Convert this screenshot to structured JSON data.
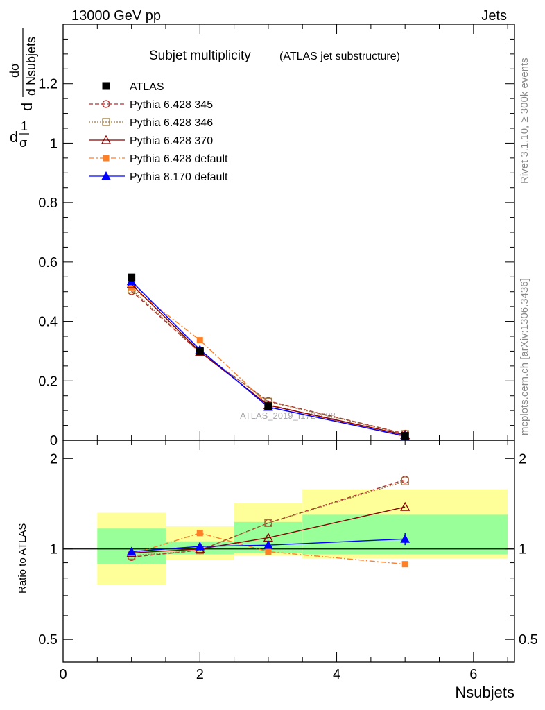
{
  "header": {
    "energy_label": "13000 GeV pp",
    "category_label": "Jets"
  },
  "side_labels": {
    "rivet": "Rivet 3.1.10, ≥ 300k events",
    "mcplots": "mcplots.cern.ch [arXiv:1306.3436]"
  },
  "watermark": "ATLAS_2019_I1724098",
  "colors": {
    "atlas": "#000000",
    "p345": "#b03030",
    "p346": "#a07838",
    "p370": "#8b0000",
    "p6def": "#ff7f27",
    "p8def": "#0000ff",
    "band_outer": "#ffff99",
    "band_inner": "#99ff99"
  },
  "chart_data": [
    {
      "type": "line",
      "title_main": "Subjet multiplicity",
      "title_sub": "(ATLAS jet substructure)",
      "ylabel": {
        "frac": "1",
        "frac_den": "σ",
        "d": "d",
        "dsig": "dσ",
        "dvar": "d Nsubjets"
      },
      "xlim": [
        0,
        6.6
      ],
      "ylim": [
        0,
        1.4
      ],
      "yticks": [
        0,
        0.2,
        0.4,
        0.6,
        0.8,
        1,
        1.2
      ],
      "ytick_labels": [
        "0",
        "0.2",
        "0.4",
        "0.6",
        "0.8",
        "1",
        "1.2"
      ],
      "series": [
        {
          "name": "ATLAS",
          "key": "atlas",
          "x": [
            1,
            2,
            3,
            5
          ],
          "y": [
            0.548,
            0.3,
            0.115,
            0.015
          ]
        },
        {
          "name": "Pythia 6.428 345",
          "key": "p345",
          "x": [
            1,
            2,
            3,
            5
          ],
          "y": [
            0.502,
            0.296,
            0.132,
            0.022
          ]
        },
        {
          "name": "Pythia 6.428 346",
          "key": "p346",
          "x": [
            1,
            2,
            3,
            5
          ],
          "y": [
            0.508,
            0.297,
            0.13,
            0.021
          ]
        },
        {
          "name": "Pythia 6.428 370",
          "key": "p370",
          "x": [
            1,
            2,
            3,
            5
          ],
          "y": [
            0.525,
            0.298,
            0.118,
            0.018
          ]
        },
        {
          "name": "Pythia 6.428 default",
          "key": "p6def",
          "x": [
            1,
            2,
            3,
            5
          ],
          "y": [
            0.515,
            0.337,
            0.12,
            0.012
          ]
        },
        {
          "name": "Pythia 8.170 default",
          "key": "p8def",
          "x": [
            1,
            2,
            3,
            5
          ],
          "y": [
            0.535,
            0.305,
            0.112,
            0.014
          ]
        }
      ]
    },
    {
      "type": "line",
      "ylabel": "Ratio to ATLAS",
      "xlabel": "Nsubjets",
      "xlim": [
        0,
        6.6
      ],
      "ylim": [
        0.42,
        2.3
      ],
      "log_y": true,
      "yticks": [
        0.5,
        1,
        2
      ],
      "ytick_labels": [
        "0.5",
        "1",
        "2"
      ],
      "xticks": [
        0,
        2,
        4,
        6
      ],
      "xtick_labels": [
        "0",
        "2",
        "4",
        "6"
      ],
      "bands": [
        {
          "x": [
            0.5,
            1.5
          ],
          "outer": [
            0.76,
            1.32
          ],
          "inner": [
            0.89,
            1.17
          ]
        },
        {
          "x": [
            1.5,
            2.5
          ],
          "outer": [
            0.92,
            1.19
          ],
          "inner": [
            0.96,
            1.06
          ]
        },
        {
          "x": [
            2.5,
            3.5
          ],
          "outer": [
            0.95,
            1.42
          ],
          "inner": [
            0.97,
            1.23
          ]
        },
        {
          "x": [
            3.5,
            6.5
          ],
          "outer": [
            0.93,
            1.58
          ],
          "inner": [
            0.96,
            1.3
          ]
        }
      ],
      "series": [
        {
          "name": "Pythia 6.428 345",
          "key": "p345",
          "x": [
            1,
            2,
            3,
            5
          ],
          "y": [
            0.94,
            0.99,
            1.22,
            1.7
          ]
        },
        {
          "name": "Pythia 6.428 346",
          "key": "p346",
          "x": [
            1,
            2,
            3,
            5
          ],
          "y": [
            0.95,
            0.99,
            1.22,
            1.68
          ]
        },
        {
          "name": "Pythia 6.428 370",
          "key": "p370",
          "x": [
            1,
            2,
            3,
            5
          ],
          "y": [
            0.97,
            1.0,
            1.09,
            1.38
          ]
        },
        {
          "name": "Pythia 6.428 default",
          "key": "p6def",
          "x": [
            1,
            2,
            3,
            5
          ],
          "y": [
            0.96,
            1.13,
            0.98,
            0.89
          ]
        },
        {
          "name": "Pythia 8.170 default",
          "key": "p8def",
          "x": [
            1,
            2,
            3,
            5
          ],
          "y": [
            0.98,
            1.02,
            1.03,
            1.08
          ],
          "err": [
            0.02,
            0.01,
            0.02,
            0.05
          ]
        }
      ]
    }
  ]
}
